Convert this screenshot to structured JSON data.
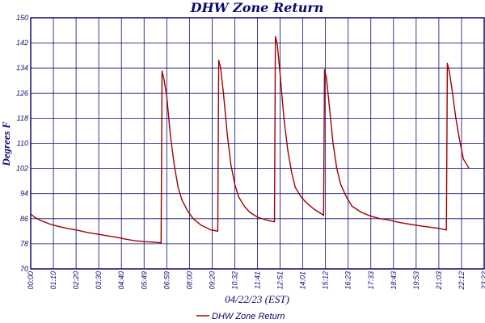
{
  "chart_data": {
    "type": "line",
    "title": "DHW Zone Return",
    "xlabel": "04/22/23 (EST)",
    "ylabel": "Degrees F",
    "ylim": [
      70,
      150
    ],
    "yticks": [
      70,
      78,
      86,
      94,
      102,
      110,
      118,
      126,
      134,
      142,
      150
    ],
    "xticks": [
      "00:00",
      "01:10",
      "02:20",
      "03:30",
      "04:40",
      "05:49",
      "06:59",
      "08:00",
      "09:20",
      "10:32",
      "11:41",
      "12:51",
      "14:01",
      "15:12",
      "16:23",
      "17:33",
      "18:43",
      "19:53",
      "21:03",
      "22:12",
      "23:22"
    ],
    "grid": true,
    "legend_position": "bottom-center",
    "colors": {
      "series": "#a00000",
      "grid": "#0b0b6b",
      "text": "#0b0b6b"
    },
    "series": [
      {
        "name": "DHW Zone Return",
        "x": [
          0,
          0.2,
          0.5,
          1,
          1.5,
          2,
          2.5,
          3,
          3.5,
          4,
          4.5,
          5,
          5.5,
          6,
          6.5,
          6.9,
          6.95,
          7.05,
          7.2,
          7.4,
          7.6,
          7.8,
          8.0,
          8.3,
          8.6,
          9.0,
          9.5,
          9.9,
          9.95,
          10.05,
          10.2,
          10.4,
          10.6,
          10.8,
          11.0,
          11.3,
          11.6,
          12.0,
          12.5,
          12.9,
          12.95,
          13.05,
          13.2,
          13.4,
          13.6,
          13.8,
          14.0,
          14.3,
          14.6,
          15.0,
          15.4,
          15.5,
          15.55,
          15.65,
          15.8,
          16.0,
          16.2,
          16.4,
          16.7,
          17.0,
          17.5,
          18,
          18.5,
          19,
          19.5,
          20,
          20.5,
          21,
          21.5,
          22.0,
          22.05,
          22.15,
          22.3,
          22.5,
          22.7,
          22.9,
          23.2
        ],
        "values": [
          87.5,
          86.5,
          85.5,
          84.3,
          83.5,
          82.8,
          82.3,
          81.6,
          81.1,
          80.6,
          80.1,
          79.5,
          79.0,
          78.7,
          78.5,
          78.3,
          133,
          130.5,
          125,
          112,
          103,
          96,
          92,
          88.5,
          86,
          84,
          82.5,
          82,
          136.5,
          134,
          126,
          113,
          103,
          97,
          93,
          90,
          88,
          86.5,
          85.5,
          85,
          144,
          141.5,
          132,
          118,
          108,
          101,
          96,
          93,
          91,
          89,
          87.5,
          87,
          133.5,
          131,
          122,
          110,
          102,
          97,
          93,
          90,
          88,
          86.8,
          86,
          85.5,
          84.8,
          84.3,
          83.8,
          83.4,
          83.0,
          82.4,
          135.5,
          133,
          127,
          118,
          111,
          105,
          102
        ]
      }
    ]
  }
}
